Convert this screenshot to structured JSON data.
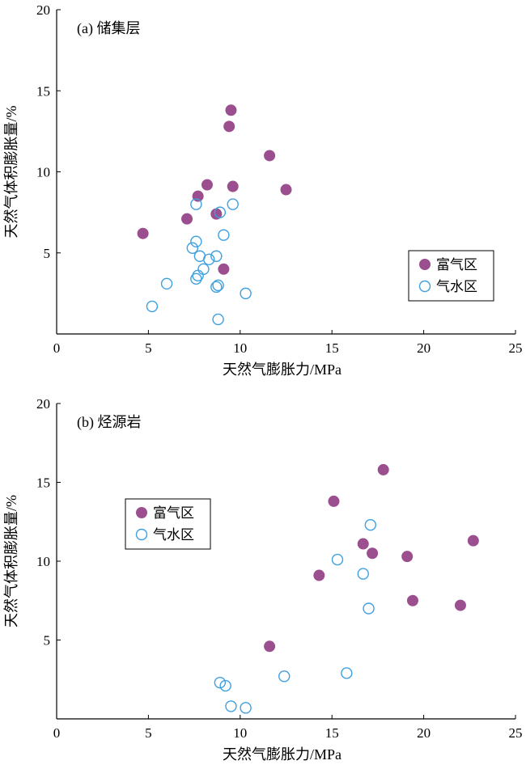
{
  "chart_data": [
    {
      "type": "scatter",
      "panel_label": "(a) 储集层",
      "xlabel": "天然气膨胀力/MPa",
      "ylabel": "天然气体积膨胀量/%",
      "xlim": [
        0,
        25
      ],
      "ylim": [
        0,
        20
      ],
      "xticks": [
        0,
        5,
        10,
        15,
        20,
        25
      ],
      "yticks": [
        5,
        10,
        15,
        20
      ],
      "legend_position": "right-middle",
      "series": [
        {
          "name": "富气区",
          "marker": "filled-circle",
          "color": "#9b4f8f",
          "points": [
            [
              4.7,
              6.2
            ],
            [
              7.1,
              7.1
            ],
            [
              7.7,
              8.5
            ],
            [
              8.2,
              9.2
            ],
            [
              8.7,
              7.4
            ],
            [
              9.1,
              4.0
            ],
            [
              9.4,
              12.8
            ],
            [
              9.5,
              13.8
            ],
            [
              9.6,
              9.1
            ],
            [
              11.6,
              11.0
            ],
            [
              12.5,
              8.9
            ]
          ]
        },
        {
          "name": "气水区",
          "marker": "open-circle",
          "color": "#3ea0e0",
          "points": [
            [
              5.2,
              1.7
            ],
            [
              6.0,
              3.1
            ],
            [
              7.4,
              5.3
            ],
            [
              7.6,
              5.7
            ],
            [
              7.6,
              8.0
            ],
            [
              7.6,
              3.4
            ],
            [
              7.7,
              3.6
            ],
            [
              7.8,
              4.8
            ],
            [
              8.0,
              4.0
            ],
            [
              8.3,
              4.6
            ],
            [
              8.7,
              2.9
            ],
            [
              8.7,
              4.8
            ],
            [
              8.8,
              0.9
            ],
            [
              8.8,
              3.0
            ],
            [
              8.9,
              7.5
            ],
            [
              9.1,
              6.1
            ],
            [
              9.6,
              8.0
            ],
            [
              10.3,
              2.5
            ]
          ]
        }
      ]
    },
    {
      "type": "scatter",
      "panel_label": "(b) 烃源岩",
      "xlabel": "天然气膨胀力/MPa",
      "ylabel": "天然气体积膨胀量/%",
      "xlim": [
        0,
        25
      ],
      "ylim": [
        0,
        20
      ],
      "xticks": [
        0,
        5,
        10,
        15,
        20,
        25
      ],
      "yticks": [
        5,
        10,
        15,
        20
      ],
      "legend_position": "top-left",
      "series": [
        {
          "name": "富气区",
          "marker": "filled-circle",
          "color": "#9b4f8f",
          "points": [
            [
              11.6,
              4.6
            ],
            [
              14.3,
              9.1
            ],
            [
              15.1,
              13.8
            ],
            [
              16.7,
              11.1
            ],
            [
              17.2,
              10.5
            ],
            [
              17.8,
              15.8
            ],
            [
              19.1,
              10.3
            ],
            [
              19.4,
              7.5
            ],
            [
              22.0,
              7.2
            ],
            [
              22.7,
              11.3
            ]
          ]
        },
        {
          "name": "气水区",
          "marker": "open-circle",
          "color": "#3ea0e0",
          "points": [
            [
              8.9,
              2.3
            ],
            [
              9.2,
              2.1
            ],
            [
              9.5,
              0.8
            ],
            [
              10.3,
              0.7
            ],
            [
              12.4,
              2.7
            ],
            [
              15.3,
              10.1
            ],
            [
              16.7,
              9.2
            ],
            [
              17.0,
              7.0
            ],
            [
              17.1,
              12.3
            ],
            [
              15.8,
              2.9
            ]
          ]
        }
      ]
    }
  ]
}
